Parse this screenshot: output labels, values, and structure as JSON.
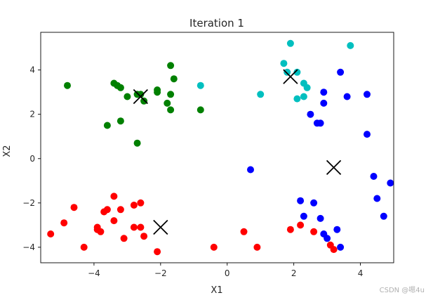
{
  "chart_data": {
    "type": "scatter",
    "title": "Iteration 1",
    "xlabel": "X1",
    "ylabel": "X2",
    "xlim": [
      -5.6,
      5.0
    ],
    "ylim": [
      -4.7,
      5.7
    ],
    "xticks": [
      -4,
      -2,
      0,
      2,
      4
    ],
    "yticks": [
      -4,
      -2,
      0,
      2,
      4
    ],
    "grid": false,
    "series": [
      {
        "color": "#ff0000",
        "points": [
          [
            -5.3,
            -3.4
          ],
          [
            -4.9,
            -2.9
          ],
          [
            -4.6,
            -2.2
          ],
          [
            -4.3,
            -4.0
          ],
          [
            -3.9,
            -3.1
          ],
          [
            -3.9,
            -3.2
          ],
          [
            -3.8,
            -3.3
          ],
          [
            -3.7,
            -2.4
          ],
          [
            -3.6,
            -2.3
          ],
          [
            -3.4,
            -1.7
          ],
          [
            -3.4,
            -2.8
          ],
          [
            -3.2,
            -2.3
          ],
          [
            -3.1,
            -3.6
          ],
          [
            -2.8,
            -2.1
          ],
          [
            -2.8,
            -3.1
          ],
          [
            -2.6,
            -3.1
          ],
          [
            -2.6,
            -2.0
          ],
          [
            -2.5,
            -3.5
          ],
          [
            -2.1,
            -4.2
          ],
          [
            -0.4,
            -4.0
          ],
          [
            0.5,
            -3.3
          ],
          [
            0.9,
            -4.0
          ],
          [
            1.9,
            -3.2
          ],
          [
            2.2,
            -3.0
          ],
          [
            2.6,
            -3.3
          ],
          [
            3.1,
            -3.9
          ],
          [
            3.2,
            -4.1
          ]
        ]
      },
      {
        "color": "#0000ff",
        "points": [
          [
            0.7,
            -0.5
          ],
          [
            2.2,
            -1.9
          ],
          [
            2.3,
            -2.6
          ],
          [
            2.6,
            -2.0
          ],
          [
            2.8,
            -2.7
          ],
          [
            2.9,
            -3.4
          ],
          [
            3.0,
            -3.6
          ],
          [
            3.3,
            -3.2
          ],
          [
            3.4,
            -4.0
          ],
          [
            4.4,
            -0.8
          ],
          [
            4.5,
            -1.8
          ],
          [
            4.7,
            -2.6
          ],
          [
            4.9,
            -1.1
          ],
          [
            2.5,
            2.0
          ],
          [
            2.7,
            1.6
          ],
          [
            2.8,
            1.6
          ],
          [
            2.9,
            2.5
          ],
          [
            2.9,
            3.0
          ],
          [
            3.4,
            3.9
          ],
          [
            3.6,
            2.8
          ],
          [
            4.2,
            2.9
          ],
          [
            4.2,
            1.1
          ]
        ]
      },
      {
        "color": "#008000",
        "points": [
          [
            -4.8,
            3.3
          ],
          [
            -3.6,
            1.5
          ],
          [
            -3.4,
            3.4
          ],
          [
            -3.3,
            3.3
          ],
          [
            -3.2,
            3.2
          ],
          [
            -3.2,
            1.7
          ],
          [
            -3.0,
            2.8
          ],
          [
            -2.7,
            2.9
          ],
          [
            -2.7,
            0.7
          ],
          [
            -2.6,
            2.9
          ],
          [
            -2.5,
            2.6
          ],
          [
            -2.1,
            3.0
          ],
          [
            -2.1,
            3.1
          ],
          [
            -1.8,
            2.5
          ],
          [
            -1.7,
            4.2
          ],
          [
            -1.7,
            2.9
          ],
          [
            -1.7,
            2.2
          ],
          [
            -1.6,
            3.6
          ],
          [
            -0.8,
            2.2
          ]
        ]
      },
      {
        "color": "#00bfbf",
        "points": [
          [
            -0.8,
            3.3
          ],
          [
            1.0,
            2.9
          ],
          [
            1.7,
            4.3
          ],
          [
            1.8,
            3.9
          ],
          [
            1.9,
            5.2
          ],
          [
            2.1,
            2.7
          ],
          [
            2.1,
            3.9
          ],
          [
            2.3,
            3.4
          ],
          [
            2.3,
            2.8
          ],
          [
            2.4,
            3.2
          ],
          [
            3.7,
            5.1
          ]
        ]
      }
    ],
    "centroids": [
      [
        -2.6,
        2.8
      ],
      [
        1.9,
        3.7
      ],
      [
        3.2,
        -0.4
      ],
      [
        -2.0,
        -3.1
      ]
    ],
    "centroid_color": "#000000"
  },
  "watermark": "CSDN @嗯4u"
}
